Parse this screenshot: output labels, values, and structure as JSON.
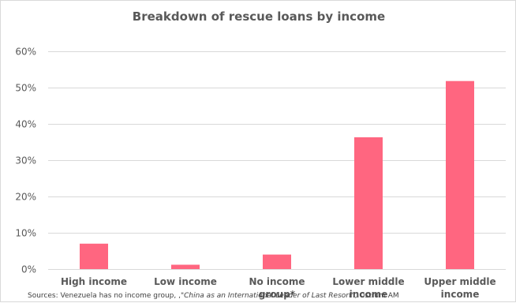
{
  "chart_data": {
    "type": "bar",
    "title": "Breakdown of rescue loans by income",
    "categories": [
      "High income",
      "Low income",
      "No income group*",
      "Lower middle income",
      "Upper middle income"
    ],
    "category_lines": [
      [
        "High income"
      ],
      [
        "Low income"
      ],
      [
        "No income",
        "group*"
      ],
      [
        "Lower middle",
        "income"
      ],
      [
        "Upper middle",
        "income"
      ]
    ],
    "values": [
      7,
      1.2,
      4,
      36.3,
      51.8
    ],
    "ylim": [
      0,
      60
    ],
    "yticks": [
      0,
      10,
      20,
      30,
      40,
      50,
      60
    ],
    "ytick_labels": [
      "0%",
      "10%",
      "20%",
      "30%",
      "40%",
      "50%",
      "60%"
    ],
    "xlabel": "",
    "ylabel": "",
    "grid": true,
    "bar_color": "#ff6680"
  },
  "source": {
    "prefix": "Sources: Venezuela has no income group, ,",
    "citation": "\"China as an International Leader of Last Resort\"",
    "suffix": ", Ostrum AM"
  }
}
